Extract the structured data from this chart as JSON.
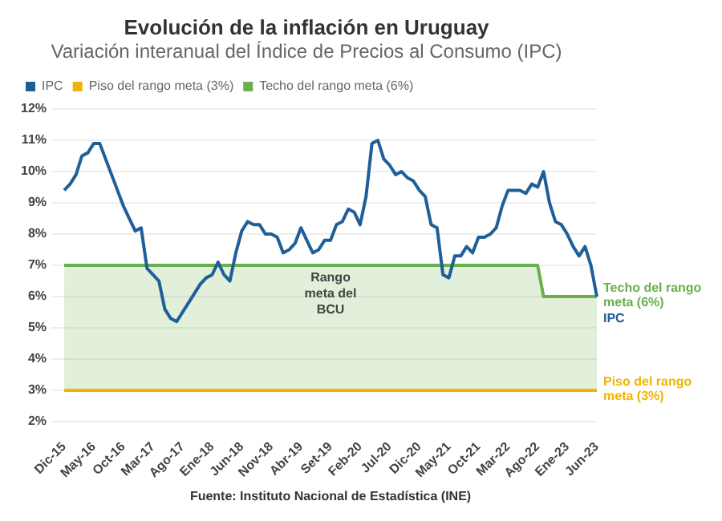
{
  "chart_data": {
    "type": "line",
    "title": "Evolución de la inflación en Uruguay",
    "subtitle": "Variación interanual del Índice de Precios al Consumo (IPC)",
    "categories": [
      "Dic-15",
      null,
      null,
      null,
      null,
      "May-16",
      null,
      null,
      null,
      null,
      "Oct-16",
      null,
      null,
      null,
      null,
      "Mar-17",
      null,
      null,
      null,
      null,
      "Ago-17",
      null,
      null,
      null,
      null,
      "Ene-18",
      null,
      null,
      null,
      null,
      "Jun-18",
      null,
      null,
      null,
      null,
      "Nov-18",
      null,
      null,
      null,
      null,
      "Abr-19",
      null,
      null,
      null,
      null,
      "Set-19",
      null,
      null,
      null,
      null,
      "Feb-20",
      null,
      null,
      null,
      null,
      "Jul-20",
      null,
      null,
      null,
      null,
      "Dic-20",
      null,
      null,
      null,
      null,
      "May-21",
      null,
      null,
      null,
      null,
      "Oct-21",
      null,
      null,
      null,
      null,
      "Mar-22",
      null,
      null,
      null,
      null,
      "Ago-22",
      null,
      null,
      null,
      null,
      "Ene-23",
      null,
      null,
      null,
      null,
      "Jun-23"
    ],
    "series": [
      {
        "name": "IPC",
        "color": "#1f5f99",
        "values": [
          9.4,
          9.6,
          9.9,
          10.5,
          10.6,
          10.9,
          10.9,
          10.4,
          9.9,
          9.4,
          8.9,
          8.5,
          8.1,
          8.2,
          6.9,
          6.7,
          6.5,
          5.6,
          5.3,
          5.2,
          5.5,
          5.8,
          6.1,
          6.4,
          6.6,
          6.7,
          7.1,
          6.7,
          6.5,
          7.4,
          8.1,
          8.4,
          8.3,
          8.3,
          8.0,
          8.0,
          7.9,
          7.4,
          7.5,
          7.7,
          8.2,
          7.8,
          7.4,
          7.5,
          7.8,
          7.8,
          8.3,
          8.4,
          8.8,
          8.7,
          8.3,
          9.2,
          10.9,
          11.0,
          10.4,
          10.2,
          9.9,
          10.0,
          9.8,
          9.7,
          9.4,
          9.2,
          8.3,
          8.2,
          6.7,
          6.6,
          7.3,
          7.3,
          7.6,
          7.4,
          7.9,
          7.9,
          8.0,
          8.2,
          8.9,
          9.4,
          9.4,
          9.4,
          9.3,
          9.6,
          9.5,
          10.0,
          9.0,
          8.4,
          8.3,
          8.0,
          7.6,
          7.3,
          7.6,
          7.0,
          6.0
        ]
      },
      {
        "name": "Piso del rango meta (3%)",
        "color": "#f0b400",
        "values": [
          3,
          3,
          3,
          3,
          3,
          3,
          3,
          3,
          3,
          3,
          3,
          3,
          3,
          3,
          3,
          3,
          3,
          3,
          3,
          3,
          3,
          3,
          3,
          3,
          3,
          3,
          3,
          3,
          3,
          3,
          3,
          3,
          3,
          3,
          3,
          3,
          3,
          3,
          3,
          3,
          3,
          3,
          3,
          3,
          3,
          3,
          3,
          3,
          3,
          3,
          3,
          3,
          3,
          3,
          3,
          3,
          3,
          3,
          3,
          3,
          3,
          3,
          3,
          3,
          3,
          3,
          3,
          3,
          3,
          3,
          3,
          3,
          3,
          3,
          3,
          3,
          3,
          3,
          3,
          3,
          3,
          3,
          3,
          3,
          3,
          3,
          3,
          3,
          3,
          3,
          3
        ]
      },
      {
        "name": "Techo del rango meta (6%)",
        "type": "area",
        "color": "#6ab04c",
        "values": [
          7,
          7,
          7,
          7,
          7,
          7,
          7,
          7,
          7,
          7,
          7,
          7,
          7,
          7,
          7,
          7,
          7,
          7,
          7,
          7,
          7,
          7,
          7,
          7,
          7,
          7,
          7,
          7,
          7,
          7,
          7,
          7,
          7,
          7,
          7,
          7,
          7,
          7,
          7,
          7,
          7,
          7,
          7,
          7,
          7,
          7,
          7,
          7,
          7,
          7,
          7,
          7,
          7,
          7,
          7,
          7,
          7,
          7,
          7,
          7,
          7,
          7,
          7,
          7,
          7,
          7,
          7,
          7,
          7,
          7,
          7,
          7,
          7,
          7,
          7,
          7,
          7,
          7,
          7,
          7,
          7,
          6,
          6,
          6,
          6,
          6,
          6,
          6,
          6,
          6,
          6
        ]
      }
    ],
    "ylim": [
      2,
      12
    ],
    "yticks": [
      {
        "value": 2,
        "label": "2%"
      },
      {
        "value": 3,
        "label": "3%"
      },
      {
        "value": 4,
        "label": "4%"
      },
      {
        "value": 5,
        "label": "5%"
      },
      {
        "value": 6,
        "label": "6%"
      },
      {
        "value": 7,
        "label": "7%"
      },
      {
        "value": 8,
        "label": "8%"
      },
      {
        "value": 9,
        "label": "9%"
      },
      {
        "value": 10,
        "label": "10%"
      },
      {
        "value": 11,
        "label": "11%"
      },
      {
        "value": 12,
        "label": "12%"
      }
    ],
    "grid": "y",
    "legend": "top left",
    "marker": "none",
    "line_style": "solid",
    "annotations": [
      "Rango meta del BCU",
      "Fuente: Instituto Nacional de Estadística (INE)"
    ]
  }
}
